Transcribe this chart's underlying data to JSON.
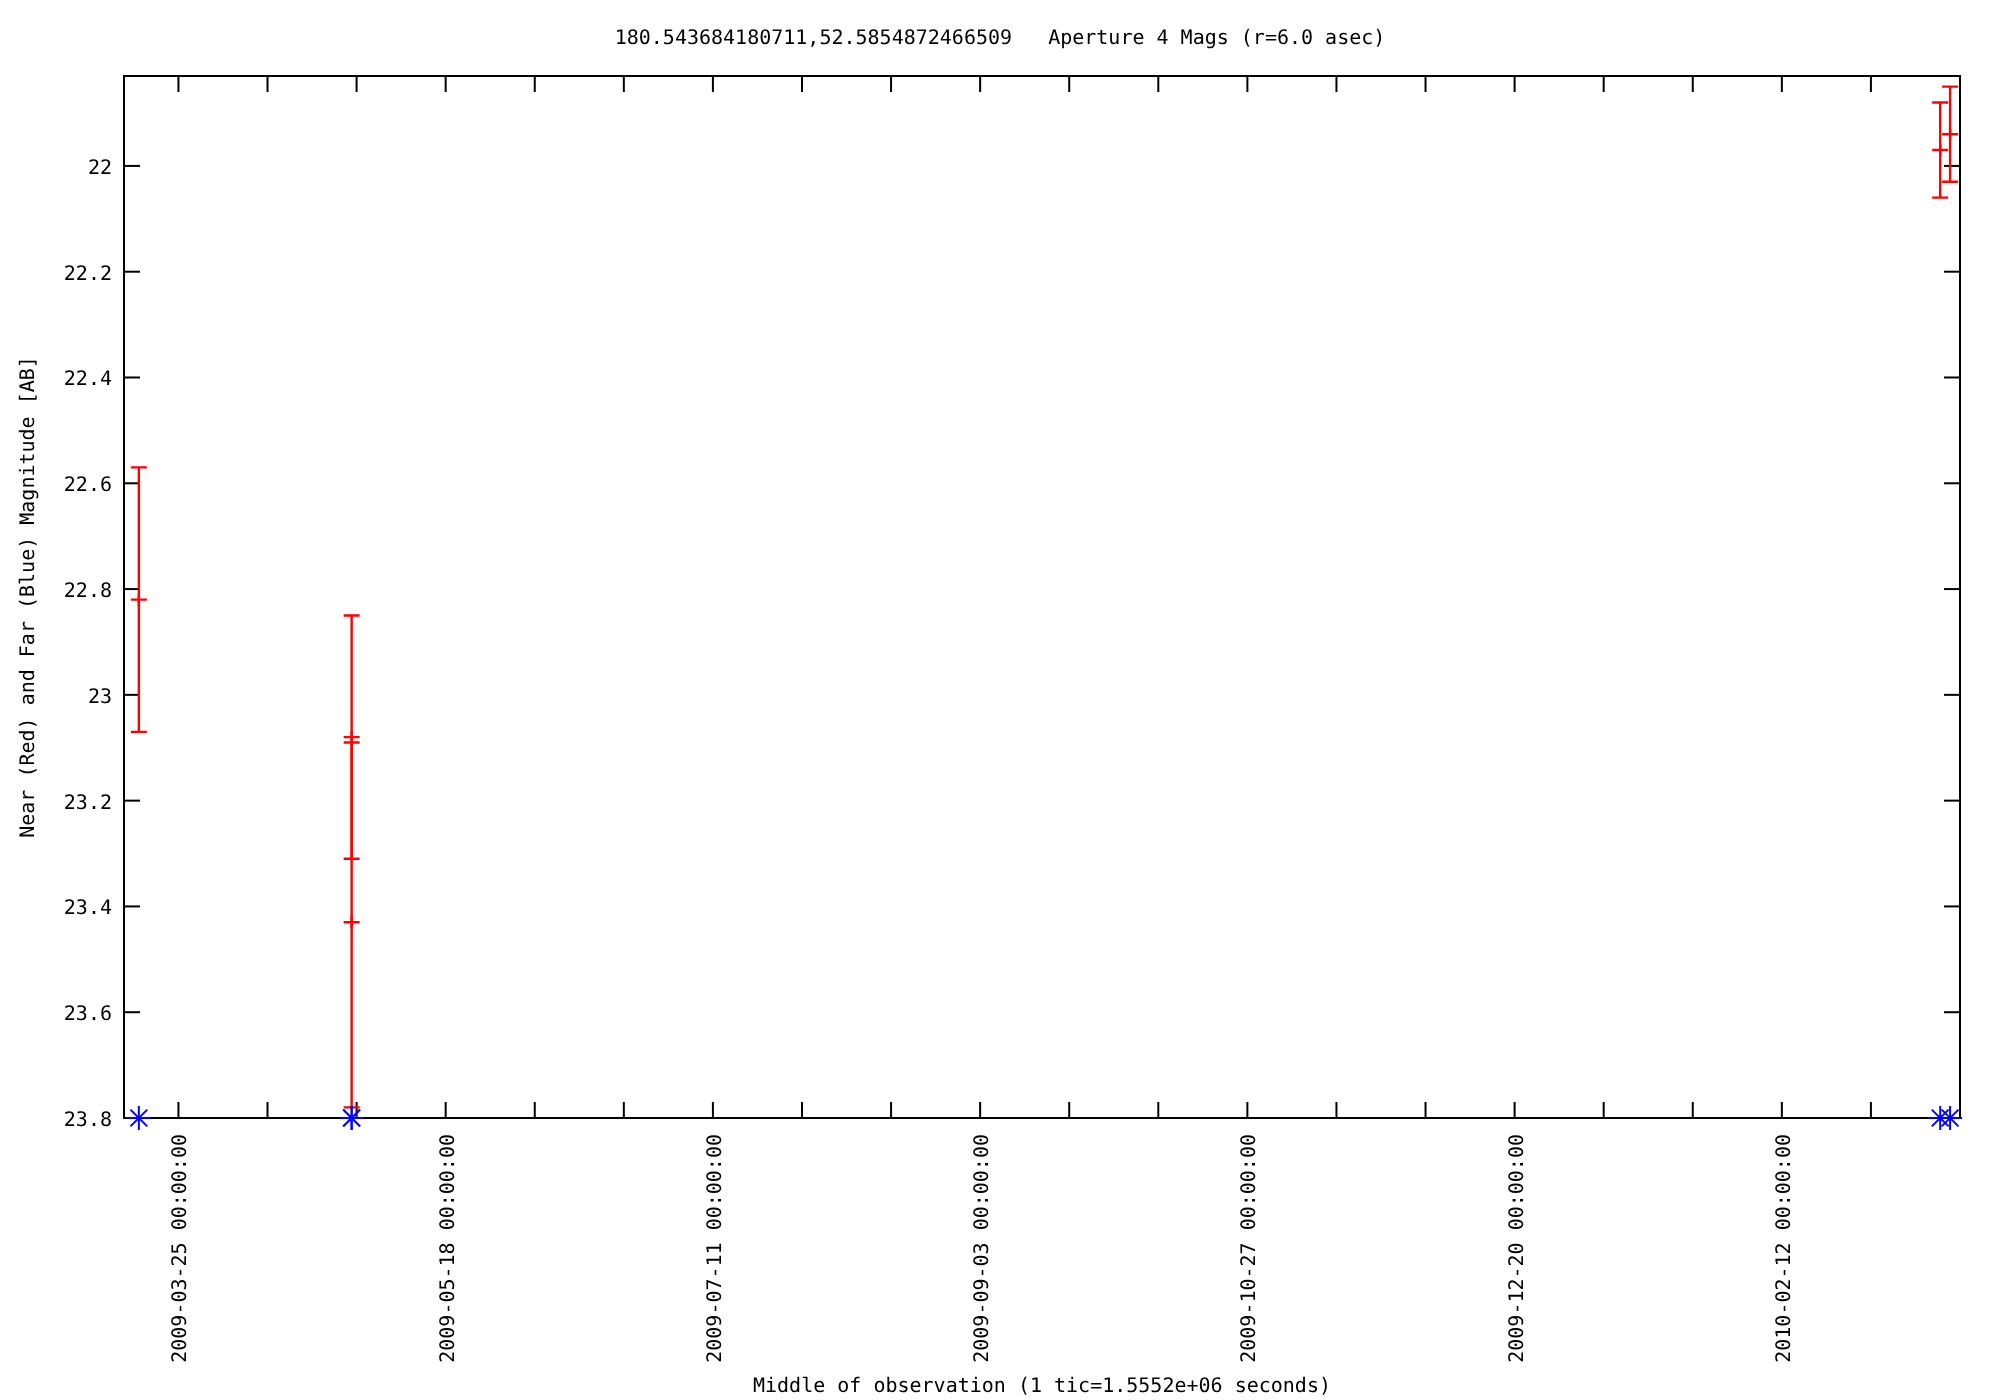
{
  "chart_data": {
    "type": "scatter",
    "title": "180.543684180711,52.5854872466509   Aperture 4 Mags (r=6.0 asec)",
    "xlabel": "Middle of observation (1 tic=1.5552e+06 seconds)",
    "ylabel": "Near (Red) and Far (Blue) Magnitude [AB]",
    "xlim": [
      "2009-03-14",
      "2010-03-20"
    ],
    "ylim": [
      23.8,
      21.83
    ],
    "xticks": [
      {
        "value": "2009-03-25",
        "label": "2009-03-25 00:00:00"
      },
      {
        "value": "2009-04-12",
        "label": null
      },
      {
        "value": "2009-04-30",
        "label": null
      },
      {
        "value": "2009-05-18",
        "label": "2009-05-18 00:00:00"
      },
      {
        "value": "2009-06-05",
        "label": null
      },
      {
        "value": "2009-06-23",
        "label": null
      },
      {
        "value": "2009-07-11",
        "label": "2009-07-11 00:00:00"
      },
      {
        "value": "2009-07-29",
        "label": null
      },
      {
        "value": "2009-08-16",
        "label": null
      },
      {
        "value": "2009-09-03",
        "label": "2009-09-03 00:00:00"
      },
      {
        "value": "2009-09-21",
        "label": null
      },
      {
        "value": "2009-10-09",
        "label": null
      },
      {
        "value": "2009-10-27",
        "label": "2009-10-27 00:00:00"
      },
      {
        "value": "2009-11-14",
        "label": null
      },
      {
        "value": "2009-12-02",
        "label": null
      },
      {
        "value": "2009-12-20",
        "label": "2009-12-20 00:00:00"
      },
      {
        "value": "2010-01-07",
        "label": null
      },
      {
        "value": "2010-01-25",
        "label": null
      },
      {
        "value": "2010-02-12",
        "label": "2010-02-12 00:00:00"
      },
      {
        "value": "2010-03-02",
        "label": null
      }
    ],
    "yticks": [
      22,
      22.2,
      22.4,
      22.6,
      22.8,
      23,
      23.2,
      23.4,
      23.6,
      23.8
    ],
    "grid": false,
    "series": [
      {
        "color": "#ff0000",
        "x": [
          "2009-03-17",
          "2009-04-29",
          "2009-04-29",
          "2010-03-16",
          "2010-03-18"
        ],
        "values": [
          22.82,
          23.08,
          23.43,
          21.97,
          21.94
        ],
        "errors": [
          [
            22.57,
            23.07
          ],
          [
            22.85,
            23.31
          ],
          [
            23.09,
            23.78
          ],
          [
            21.88,
            22.06
          ],
          [
            21.85,
            22.03
          ]
        ]
      },
      {
        "color": "#0000ff",
        "marker": "cross",
        "x": [
          "2009-03-17",
          "2009-04-29",
          "2009-04-29",
          "2010-03-16",
          "2010-03-18"
        ],
        "values": [
          23.8,
          23.8,
          23.8,
          23.8,
          23.8
        ]
      }
    ]
  }
}
